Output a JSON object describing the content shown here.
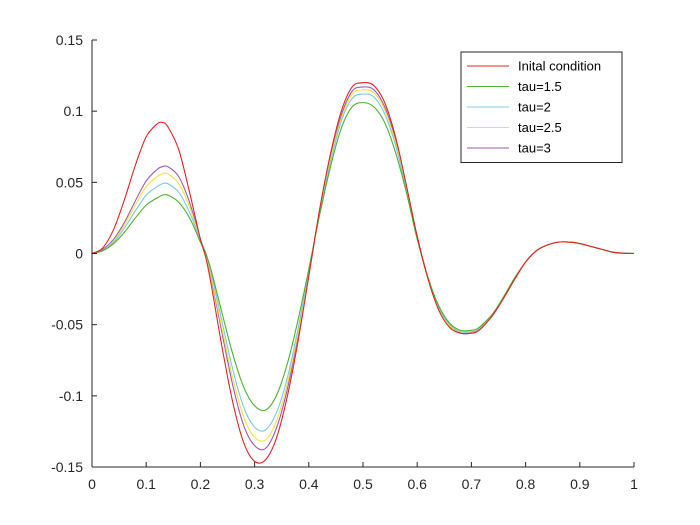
{
  "chart_data": {
    "type": "line",
    "title": "",
    "xlabel": "",
    "ylabel": "",
    "xlim": [
      0,
      1
    ],
    "ylim": [
      -0.15,
      0.15
    ],
    "grid": false,
    "legend_position": "top-right",
    "x_ticks": [
      "0",
      "0.1",
      "0.2",
      "0.3",
      "0.4",
      "0.5",
      "0.6",
      "0.7",
      "0.8",
      "0.9",
      "1"
    ],
    "x_tick_values": [
      0,
      0.1,
      0.2,
      0.3,
      0.4,
      0.5,
      0.6,
      0.7,
      0.8,
      0.9,
      1
    ],
    "y_ticks": [
      "0.15",
      "0.1",
      "0.05",
      "0",
      "-0.05",
      "-0.1",
      "-0.15"
    ],
    "y_tick_values": [
      0.15,
      0.1,
      0.05,
      0,
      -0.05,
      -0.1,
      -0.15
    ],
    "x": [
      0,
      0.02,
      0.04,
      0.06,
      0.08,
      0.1,
      0.12,
      0.13,
      0.14,
      0.16,
      0.18,
      0.2,
      0.21,
      0.22,
      0.24,
      0.26,
      0.28,
      0.3,
      0.32,
      0.34,
      0.36,
      0.38,
      0.4,
      0.42,
      0.44,
      0.46,
      0.48,
      0.5,
      0.52,
      0.54,
      0.56,
      0.58,
      0.6,
      0.62,
      0.64,
      0.66,
      0.68,
      0.7,
      0.71,
      0.72,
      0.74,
      0.76,
      0.78,
      0.8,
      0.82,
      0.84,
      0.86,
      0.88,
      0.9,
      0.92,
      0.94,
      0.96,
      0.98,
      1.0
    ],
    "series": [
      {
        "name": "Inital condition",
        "color": "#e8211d",
        "values": [
          0,
          0.004,
          0.017,
          0.038,
          0.062,
          0.082,
          0.091,
          0.092,
          0.089,
          0.073,
          0.043,
          0.01,
          -0.003,
          -0.022,
          -0.066,
          -0.105,
          -0.133,
          -0.146,
          -0.145,
          -0.13,
          -0.101,
          -0.062,
          -0.016,
          0.031,
          0.07,
          0.1,
          0.117,
          0.12,
          0.118,
          0.106,
          0.082,
          0.048,
          0.012,
          -0.018,
          -0.04,
          -0.052,
          -0.056,
          -0.056,
          -0.055,
          -0.052,
          -0.043,
          -0.031,
          -0.018,
          -0.006,
          0.002,
          0.006,
          0.008,
          0.008,
          0.007,
          0.005,
          0.003,
          0.001,
          0.0002,
          0
        ]
      },
      {
        "name": "tau=1.5",
        "color": "#4cb031",
        "values": [
          0,
          0.002,
          0.007,
          0.015,
          0.025,
          0.034,
          0.039,
          0.041,
          0.041,
          0.036,
          0.025,
          0.008,
          0.0,
          -0.012,
          -0.042,
          -0.071,
          -0.094,
          -0.107,
          -0.11,
          -0.1,
          -0.078,
          -0.047,
          -0.011,
          0.027,
          0.061,
          0.088,
          0.103,
          0.106,
          0.103,
          0.092,
          0.071,
          0.043,
          0.01,
          -0.017,
          -0.037,
          -0.049,
          -0.054,
          -0.054,
          -0.053,
          -0.05,
          -0.042,
          -0.03,
          -0.017,
          -0.006,
          0.002,
          0.006,
          0.008,
          0.008,
          0.007,
          0.005,
          0.003,
          0.001,
          0.0002,
          0
        ]
      },
      {
        "name": "tau=2",
        "color": "#75cbe8",
        "values": [
          0,
          0.002,
          0.008,
          0.018,
          0.03,
          0.041,
          0.047,
          0.049,
          0.049,
          0.043,
          0.029,
          0.009,
          0.0,
          -0.014,
          -0.048,
          -0.082,
          -0.108,
          -0.122,
          -0.124,
          -0.112,
          -0.088,
          -0.053,
          -0.013,
          0.029,
          0.064,
          0.093,
          0.109,
          0.112,
          0.11,
          0.098,
          0.076,
          0.045,
          0.011,
          -0.017,
          -0.038,
          -0.05,
          -0.055,
          -0.055,
          -0.054,
          -0.051,
          -0.042,
          -0.031,
          -0.018,
          -0.006,
          0.002,
          0.006,
          0.008,
          0.008,
          0.007,
          0.005,
          0.003,
          0.001,
          0.0002,
          0
        ]
      },
      {
        "name": "tau=2.5",
        "color": "#f8e236",
        "values": [
          0,
          0.002,
          0.009,
          0.02,
          0.034,
          0.047,
          0.054,
          0.056,
          0.056,
          0.049,
          0.033,
          0.009,
          0.0,
          -0.016,
          -0.053,
          -0.088,
          -0.115,
          -0.129,
          -0.131,
          -0.118,
          -0.092,
          -0.056,
          -0.014,
          0.03,
          0.066,
          0.095,
          0.112,
          0.115,
          0.113,
          0.101,
          0.078,
          0.046,
          0.011,
          -0.017,
          -0.039,
          -0.051,
          -0.055,
          -0.055,
          -0.054,
          -0.051,
          -0.042,
          -0.031,
          -0.018,
          -0.006,
          0.002,
          0.006,
          0.008,
          0.008,
          0.007,
          0.005,
          0.003,
          0.001,
          0.0002,
          0
        ]
      },
      {
        "name": "tau=3",
        "color": "#9b58b6",
        "values": [
          0,
          0.003,
          0.01,
          0.022,
          0.037,
          0.051,
          0.059,
          0.061,
          0.061,
          0.054,
          0.036,
          0.01,
          0.0,
          -0.017,
          -0.056,
          -0.093,
          -0.121,
          -0.135,
          -0.137,
          -0.123,
          -0.096,
          -0.058,
          -0.015,
          0.03,
          0.067,
          0.097,
          0.114,
          0.117,
          0.115,
          0.103,
          0.08,
          0.047,
          0.012,
          -0.017,
          -0.039,
          -0.051,
          -0.056,
          -0.056,
          -0.055,
          -0.051,
          -0.043,
          -0.031,
          -0.018,
          -0.006,
          0.002,
          0.006,
          0.008,
          0.008,
          0.007,
          0.005,
          0.003,
          0.001,
          0.0002,
          0
        ]
      }
    ]
  }
}
